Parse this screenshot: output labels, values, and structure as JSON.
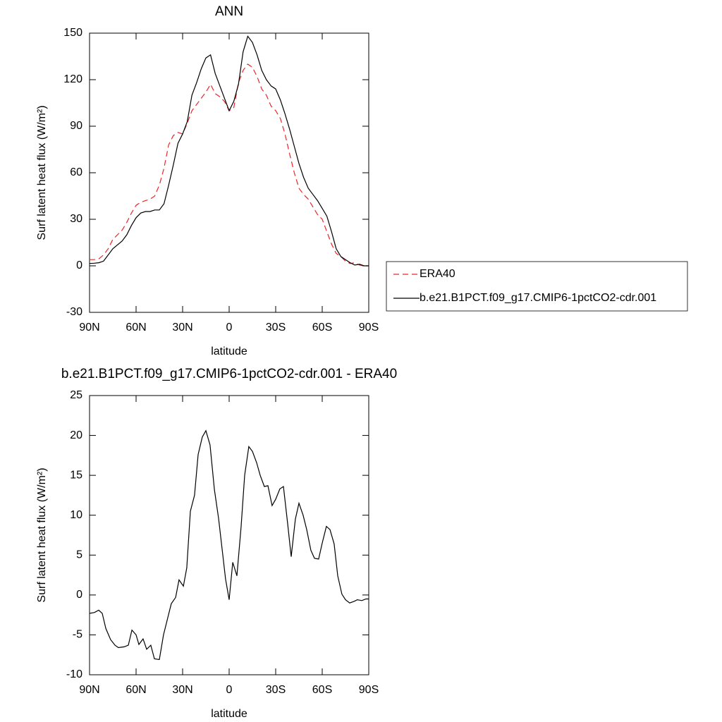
{
  "chart_data": [
    {
      "type": "line",
      "title": "ANN",
      "xlabel": "latitude",
      "ylabel": "Surf latent heat flux (W/m²)",
      "x": [
        90,
        87,
        84,
        81,
        78,
        75,
        72,
        69,
        66,
        63,
        60,
        57,
        54,
        51,
        48,
        45,
        42,
        39,
        36,
        33,
        30,
        27,
        24,
        21,
        18,
        15,
        12,
        9,
        6,
        3,
        0,
        -3,
        -6,
        -9,
        -12,
        -15,
        -18,
        -21,
        -24,
        -27,
        -30,
        -33,
        -36,
        -39,
        -42,
        -45,
        -48,
        -51,
        -54,
        -57,
        -60,
        -63,
        -66,
        -69,
        -72,
        -75,
        -78,
        -81,
        -84,
        -87,
        -90
      ],
      "series": [
        {
          "name": "ERA40",
          "color": "#e8262a",
          "linestyle": "dashed",
          "values": [
            4,
            4,
            4.5,
            7,
            11,
            17,
            20,
            23,
            28,
            34,
            39,
            41,
            42,
            43,
            45,
            52,
            63,
            78,
            84,
            86,
            85,
            92,
            100,
            104,
            108,
            112,
            117,
            111,
            109,
            106,
            100,
            102,
            118,
            126,
            130,
            128,
            122,
            114,
            110,
            103,
            100,
            95,
            85,
            72,
            60,
            50,
            46,
            43,
            38,
            33,
            30,
            22,
            14,
            8,
            6,
            3,
            1.5,
            2,
            0.5,
            0,
            0
          ]
        },
        {
          "name": "b.e21.B1PCT.f09_g17.CMIP6-1pctCO2-cdr.001",
          "color": "#000000",
          "linestyle": "solid",
          "values": [
            1.5,
            1.7,
            2,
            3,
            7,
            11,
            13.5,
            16,
            20,
            26,
            31,
            34,
            35,
            35,
            36,
            36,
            40,
            52,
            65,
            79,
            85,
            93,
            110,
            118,
            127,
            134,
            136,
            124,
            116,
            108,
            100,
            106,
            117,
            138,
            148,
            144,
            136,
            126,
            120,
            116,
            114,
            107,
            98,
            88,
            77,
            66,
            57,
            50,
            46,
            42,
            37,
            32,
            22,
            11,
            6,
            4,
            2,
            0.5,
            1,
            0,
            0
          ]
        }
      ],
      "xlim": [
        90,
        -90
      ],
      "xticks": [
        {
          "value": 90,
          "label": "90N"
        },
        {
          "value": 60,
          "label": "60N"
        },
        {
          "value": 30,
          "label": "30N"
        },
        0,
        {
          "value": -30,
          "label": "30S"
        },
        {
          "value": -60,
          "label": "60S"
        },
        {
          "value": -90,
          "label": "90S"
        }
      ],
      "ylim": [
        -30,
        150
      ],
      "yticks": [
        -30,
        0,
        30,
        60,
        90,
        120,
        150
      ],
      "legend": "right"
    },
    {
      "type": "line",
      "title": "b.e21.B1PCT.f09_g17.CMIP6-1pctCO2-cdr.001 - ERA40",
      "xlabel": "latitude",
      "ylabel": "Surf latent heat flux (W/m²)",
      "x": [
        90,
        86.8,
        84.1,
        81.8,
        79.5,
        76.4,
        73.6,
        71.4,
        67.7,
        65,
        62.7,
        60,
        58.2,
        55.5,
        53.2,
        50.5,
        48.2,
        45,
        42.3,
        39.5,
        37.3,
        34.5,
        32.3,
        29.5,
        27.3,
        25,
        22.3,
        20,
        17.3,
        15,
        12.3,
        9.5,
        6.8,
        4.5,
        2.3,
        0,
        -2.3,
        -5,
        -7.7,
        -10,
        -12.7,
        -15,
        -17.7,
        -20,
        -22.7,
        -25,
        -27.7,
        -30,
        -32.7,
        -35,
        -37.7,
        -40,
        -42.7,
        -45,
        -47.7,
        -50,
        -52.7,
        -55,
        -57.7,
        -60,
        -62.7,
        -65,
        -67.7,
        -70,
        -72.7,
        -75,
        -77.7,
        -80.5,
        -82.7,
        -85.5,
        -88.2,
        -90
      ],
      "series": [
        {
          "color": "#000000",
          "linestyle": "solid",
          "values": [
            -2.3,
            -2.2,
            -1.9,
            -2.3,
            -4.2,
            -5.6,
            -6.3,
            -6.6,
            -6.5,
            -6.3,
            -4.4,
            -5.0,
            -6.2,
            -5.5,
            -6.8,
            -6.3,
            -8.0,
            -8.1,
            -5,
            -2.8,
            -1.1,
            -0.3,
            1.9,
            1.1,
            3.4,
            10.5,
            12.5,
            17.6,
            19.8,
            20.6,
            18.8,
            13.2,
            9.6,
            5.7,
            2,
            -0.6,
            4.1,
            2.4,
            8.5,
            15,
            18.6,
            18.0,
            16.6,
            15.0,
            13.6,
            13.7,
            11.2,
            12,
            13.3,
            13.6,
            9,
            4.8,
            9.5,
            11.5,
            10,
            8.2,
            5.6,
            4.6,
            4.5,
            6.5,
            8.6,
            8.2,
            6.4,
            2.4,
            0.1,
            -0.6,
            -1.0,
            -0.8,
            -0.6,
            -0.7,
            -0.5,
            -0.5
          ]
        }
      ],
      "xlim": [
        90,
        -90
      ],
      "xticks": [
        {
          "value": 90,
          "label": "90N"
        },
        {
          "value": 60,
          "label": "60N"
        },
        {
          "value": 30,
          "label": "30N"
        },
        0,
        {
          "value": -30,
          "label": "30S"
        },
        {
          "value": -60,
          "label": "60S"
        },
        {
          "value": -90,
          "label": "90S"
        }
      ],
      "ylim": [
        -10,
        25
      ],
      "yticks": [
        -10,
        -5,
        0,
        5,
        10,
        15,
        20,
        25
      ]
    }
  ]
}
